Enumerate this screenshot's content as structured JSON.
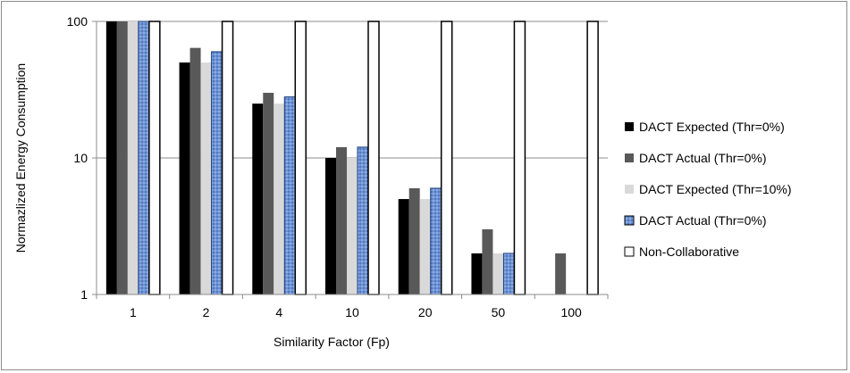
{
  "chart_data": {
    "type": "bar",
    "title": "",
    "xlabel": "Similarity Factor (Fp)",
    "ylabel": "Normazlized Energy Consumption",
    "y_scale": "log",
    "ylim": [
      1,
      100
    ],
    "y_ticks": [
      "1",
      "10",
      "100"
    ],
    "categories": [
      "1",
      "2",
      "4",
      "10",
      "20",
      "50",
      "100"
    ],
    "legend_position": "right",
    "gridlines": true,
    "series": [
      {
        "name": "DACT Expected (Thr=0%)",
        "color": "#000000",
        "pattern": "solid",
        "values": [
          100,
          50,
          25,
          10,
          5,
          2,
          null
        ]
      },
      {
        "name": "DACT Actual (Thr=0%)",
        "color": "#595959",
        "pattern": "solid",
        "values": [
          100,
          64,
          30,
          12,
          6,
          3,
          2
        ]
      },
      {
        "name": "DACT Expected (Thr=10%)",
        "color": "#d9d9d9",
        "pattern": "solid",
        "values": [
          100,
          50,
          25,
          10,
          5,
          2,
          null
        ]
      },
      {
        "name": "DACT Actual (Thr=0%)",
        "color": "#6f94d6",
        "pattern": "dotted-blue",
        "values": [
          100,
          60,
          28,
          12,
          6,
          2,
          null
        ]
      },
      {
        "name": "Non-Collaborative",
        "color": "#ffffff",
        "pattern": "outline",
        "values": [
          100,
          100,
          100,
          100,
          100,
          100,
          100
        ]
      }
    ]
  }
}
